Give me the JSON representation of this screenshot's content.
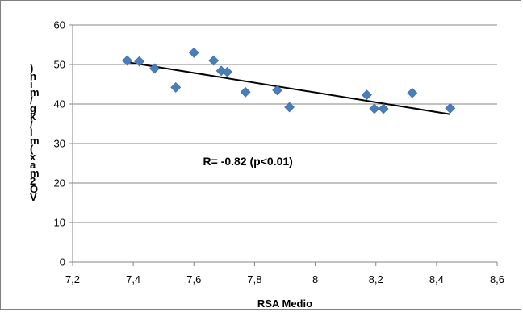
{
  "chart_data": {
    "type": "scatter",
    "xlabel": "RSA Medio",
    "ylabel": "VO2 max (ml/kg/min)",
    "xlim": [
      7.2,
      8.6
    ],
    "ylim": [
      0,
      60
    ],
    "x_ticks": [
      "7,2",
      "7,4",
      "7,6",
      "7,8",
      "8",
      "8,2",
      "8,4",
      "8,6"
    ],
    "y_ticks": [
      "0",
      "10",
      "20",
      "30",
      "40",
      "50",
      "60"
    ],
    "grid": "horizontal",
    "marker_color": "#4a7ebb",
    "line_color": "#000000",
    "points": [
      {
        "x": 7.38,
        "y": 51.0
      },
      {
        "x": 7.42,
        "y": 50.8
      },
      {
        "x": 7.47,
        "y": 49.0
      },
      {
        "x": 7.54,
        "y": 44.2
      },
      {
        "x": 7.6,
        "y": 53.0
      },
      {
        "x": 7.665,
        "y": 51.0
      },
      {
        "x": 7.69,
        "y": 48.4
      },
      {
        "x": 7.71,
        "y": 48.1
      },
      {
        "x": 7.77,
        "y": 43.0
      },
      {
        "x": 7.875,
        "y": 43.5
      },
      {
        "x": 7.915,
        "y": 39.2
      },
      {
        "x": 8.17,
        "y": 42.3
      },
      {
        "x": 8.195,
        "y": 38.8
      },
      {
        "x": 8.225,
        "y": 38.8
      },
      {
        "x": 8.32,
        "y": 42.8
      },
      {
        "x": 8.445,
        "y": 38.9
      }
    ],
    "trendline": {
      "x": [
        7.38,
        8.445
      ],
      "y": [
        50.6,
        37.4
      ]
    },
    "annotation": "R= -0.82 (p<0.01)",
    "annotation_pos": {
      "x": 7.63,
      "y": 24.5
    }
  }
}
